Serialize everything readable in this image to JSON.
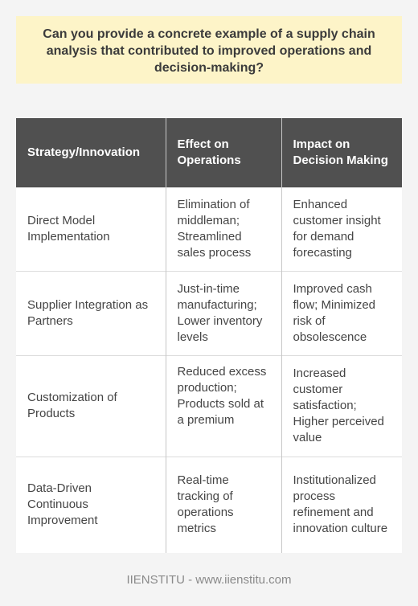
{
  "question": "Can you provide a concrete example of a supply chain analysis that contributed to improved operations and decision-making?",
  "table": {
    "headers": [
      "Strategy/Innovation",
      "Effect on Operations",
      "Impact on Decision Making"
    ],
    "rows": [
      [
        "Direct Model Implementation",
        "Elimination of middleman; Streamlined sales process",
        "Enhanced customer insight for demand forecasting"
      ],
      [
        "Supplier Integration as Partners",
        "Just-in-time manufacturing; Lower inventory levels",
        "Improved cash flow; Minimized risk of obsolescence"
      ],
      [
        "Customization of Products",
        "Reduced excess production; Products sold at a premium",
        "Increased customer satisfaction; Higher perceived value"
      ],
      [
        "Data-Driven Continuous Improvement",
        "Real-time tracking of operations metrics",
        "Institutionalized process refinement and innovation culture"
      ]
    ]
  },
  "footer": "IIENSTITU - www.iienstitu.com"
}
